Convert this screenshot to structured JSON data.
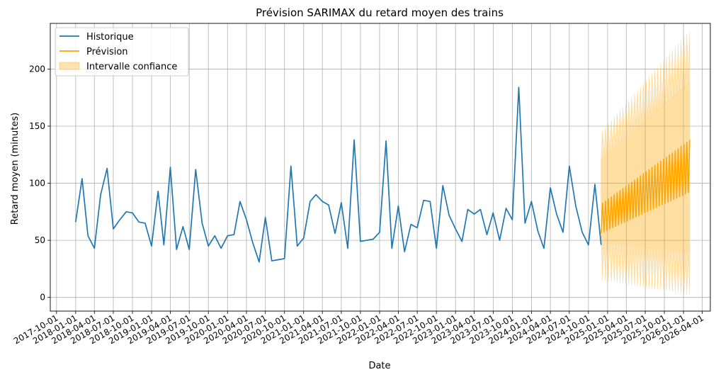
{
  "chart_data": {
    "type": "line",
    "title": "Prévision SARIMAX du retard moyen des trains",
    "xlabel": "Date",
    "ylabel": "Retard moyen (minutes)",
    "xlim": [
      "2017-09-01",
      "2026-05-10"
    ],
    "ylim": [
      -12,
      240
    ],
    "grid": true,
    "legend_position": "top-left",
    "x_ticks": [
      "2017-10-01",
      "2018-01-01",
      "2018-04-01",
      "2018-07-01",
      "2018-10-01",
      "2019-01-01",
      "2019-04-01",
      "2019-07-01",
      "2019-10-01",
      "2020-01-01",
      "2020-04-01",
      "2020-07-01",
      "2020-10-01",
      "2021-01-01",
      "2021-04-01",
      "2021-07-01",
      "2021-10-01",
      "2022-01-01",
      "2022-04-01",
      "2022-07-01",
      "2022-10-01",
      "2023-01-01",
      "2023-04-01",
      "2023-07-01",
      "2023-10-01",
      "2024-01-01",
      "2024-04-01",
      "2024-07-01",
      "2024-10-01",
      "2025-01-01",
      "2025-04-01",
      "2025-07-01",
      "2025-10-01",
      "2026-01-01",
      "2026-04-01"
    ],
    "y_ticks": [
      0,
      50,
      100,
      150,
      200
    ],
    "legend": [
      {
        "label": "Historique",
        "color": "#1f77b4",
        "kind": "line"
      },
      {
        "label": "Prévision",
        "color": "#ffa500",
        "kind": "line"
      },
      {
        "label": "Intervalle confiance",
        "color": "#ffa500",
        "kind": "patch"
      }
    ],
    "series": [
      {
        "name": "Historique",
        "color": "#1f77b4",
        "x": [
          "2018-01-01",
          "2018-02-01",
          "2018-03-01",
          "2018-04-01",
          "2018-05-01",
          "2018-06-01",
          "2018-07-01",
          "2018-08-01",
          "2018-09-01",
          "2018-10-01",
          "2018-11-01",
          "2018-12-01",
          "2019-01-01",
          "2019-02-01",
          "2019-03-01",
          "2019-04-01",
          "2019-05-01",
          "2019-06-01",
          "2019-07-01",
          "2019-08-01",
          "2019-09-01",
          "2019-10-01",
          "2019-11-01",
          "2019-12-01",
          "2020-01-01",
          "2020-02-01",
          "2020-03-01",
          "2020-04-01",
          "2020-05-01",
          "2020-06-01",
          "2020-07-01",
          "2020-08-01",
          "2020-09-01",
          "2020-10-01",
          "2020-11-01",
          "2020-12-01",
          "2021-01-01",
          "2021-02-01",
          "2021-03-01",
          "2021-04-01",
          "2021-05-01",
          "2021-06-01",
          "2021-07-01",
          "2021-08-01",
          "2021-09-01",
          "2021-10-01",
          "2021-11-01",
          "2021-12-01",
          "2022-01-01",
          "2022-02-01",
          "2022-03-01",
          "2022-04-01",
          "2022-05-01",
          "2022-06-01",
          "2022-07-01",
          "2022-08-01",
          "2022-09-01",
          "2022-10-01",
          "2022-11-01",
          "2022-12-01",
          "2023-01-01",
          "2023-02-01",
          "2023-03-01",
          "2023-04-01",
          "2023-05-01",
          "2023-06-01",
          "2023-07-01",
          "2023-08-01",
          "2023-09-01",
          "2023-10-01",
          "2023-11-01",
          "2023-12-01",
          "2024-01-01",
          "2024-02-01",
          "2024-03-01",
          "2024-04-01",
          "2024-05-01",
          "2024-06-01",
          "2024-07-01",
          "2024-08-01",
          "2024-09-01",
          "2024-10-01",
          "2024-11-01",
          "2024-12-01"
        ],
        "values": [
          66,
          104,
          54,
          43,
          90,
          113,
          60,
          68,
          75,
          74,
          66,
          65,
          45,
          93,
          46,
          114,
          42,
          62,
          42,
          112,
          65,
          45,
          54,
          43,
          54,
          55,
          84,
          68,
          48,
          31,
          70,
          32,
          33,
          34,
          115,
          45,
          52,
          84,
          90,
          84,
          81,
          56,
          83,
          43,
          138,
          49,
          50,
          51,
          57,
          137,
          43,
          80,
          40,
          64,
          61,
          85,
          84,
          43,
          98,
          72,
          60,
          49,
          77,
          73,
          77,
          55,
          74,
          50,
          78,
          68,
          184,
          65,
          84,
          58,
          43,
          96,
          73,
          57,
          115,
          80,
          57,
          46,
          99,
          46
        ]
      }
    ],
    "forecast": {
      "name": "Prévision",
      "color": "#ffa500",
      "start": "2024-12-01",
      "end": "2026-01-31",
      "lower_start": 86,
      "lower_end": 93,
      "upper_start": 82,
      "upper_end": 138,
      "dip_start": 56,
      "dip_end": 92,
      "ci_name": "Intervalle confiance",
      "ci_top_start": 145,
      "ci_top_end": 234,
      "ci_inner_top_start": 122,
      "ci_inner_top_end": 190,
      "ci_low_start": 15,
      "ci_low_end": 2,
      "ci_inner_low_start": 48,
      "ci_inner_low_end": 38
    }
  }
}
